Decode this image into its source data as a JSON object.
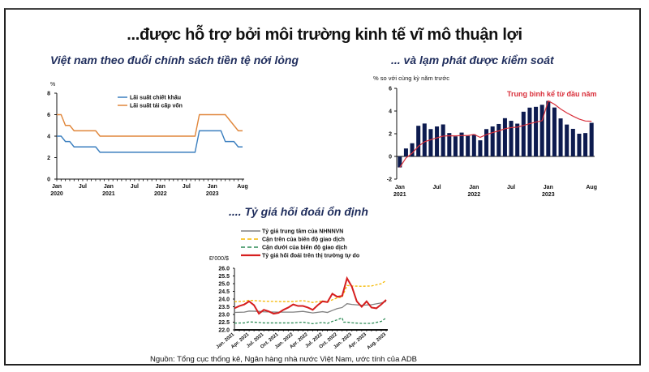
{
  "page": {
    "title": "...được hỗ trợ bởi môi trường kinh tế vĩ mô thuận lợi",
    "source": "Nguồn: Tổng cục thống kê, Ngân hàng nhà nước Việt Nam, ước tính của ADB"
  },
  "colors": {
    "title_navy": "#1f2d5c",
    "discount_rate": "#3b7fbf",
    "refinancing_rate": "#e0863a",
    "cpi_bars": "#0d1b4f",
    "cpi_avg_line": "#d9303b",
    "central_rate": "#808080",
    "upper_band": "#f5b800",
    "lower_band": "#2e8b57",
    "free_market": "#d61f1f"
  },
  "chart_data": [
    {
      "type": "line",
      "title": "Việt nam theo đuổi chính sách tiền tệ nới lỏng",
      "ylabel": "%",
      "xlabel": "",
      "ylim": [
        0,
        8
      ],
      "yticks": [
        0,
        2,
        4,
        6,
        8
      ],
      "xtick_labels": [
        {
          "month_index": 0,
          "top": "Jan",
          "bottom": "2020"
        },
        {
          "month_index": 6,
          "top": "Jul",
          "bottom": ""
        },
        {
          "month_index": 12,
          "top": "Jan",
          "bottom": "2021"
        },
        {
          "month_index": 18,
          "top": "Jul",
          "bottom": ""
        },
        {
          "month_index": 24,
          "top": "Jan",
          "bottom": "2022"
        },
        {
          "month_index": 30,
          "top": "Jul",
          "bottom": ""
        },
        {
          "month_index": 36,
          "top": "Jan",
          "bottom": "2023"
        },
        {
          "month_index": 43,
          "top": "Aug",
          "bottom": ""
        }
      ],
      "x_start": "Jan 2020",
      "x_end": "Aug 2023",
      "legend_position": "top-center",
      "grid": false,
      "series": [
        {
          "name": "Lãi suất chiết khấu",
          "values": [
            4.0,
            4.0,
            3.5,
            3.5,
            3.0,
            3.0,
            3.0,
            3.0,
            3.0,
            3.0,
            2.5,
            2.5,
            2.5,
            2.5,
            2.5,
            2.5,
            2.5,
            2.5,
            2.5,
            2.5,
            2.5,
            2.5,
            2.5,
            2.5,
            2.5,
            2.5,
            2.5,
            2.5,
            2.5,
            2.5,
            2.5,
            2.5,
            2.5,
            4.5,
            4.5,
            4.5,
            4.5,
            4.5,
            4.5,
            3.5,
            3.5,
            3.5,
            3.0,
            3.0
          ]
        },
        {
          "name": "Lãi suất tái cấp vốn",
          "values": [
            6.0,
            6.0,
            5.0,
            5.0,
            4.5,
            4.5,
            4.5,
            4.5,
            4.5,
            4.5,
            4.0,
            4.0,
            4.0,
            4.0,
            4.0,
            4.0,
            4.0,
            4.0,
            4.0,
            4.0,
            4.0,
            4.0,
            4.0,
            4.0,
            4.0,
            4.0,
            4.0,
            4.0,
            4.0,
            4.0,
            4.0,
            4.0,
            4.0,
            6.0,
            6.0,
            6.0,
            6.0,
            6.0,
            6.0,
            6.0,
            5.5,
            5.0,
            4.5,
            4.5
          ]
        }
      ]
    },
    {
      "type": "bar",
      "title": "... và lạm phát được kiểm soát",
      "ylabel": "% so với cùng kỳ năm trước",
      "xlabel": "",
      "ylim": [
        -2,
        6
      ],
      "yticks": [
        -2,
        0,
        2,
        4,
        6
      ],
      "annotation": "Trung bình kể từ đầu năm",
      "xtick_labels": [
        {
          "index": 0,
          "top": "Jan",
          "bottom": "2021"
        },
        {
          "index": 6,
          "top": "Jul",
          "bottom": ""
        },
        {
          "index": 12,
          "top": "Jan",
          "bottom": "2022"
        },
        {
          "index": 18,
          "top": "Jul",
          "bottom": ""
        },
        {
          "index": 24,
          "top": "Jan",
          "bottom": "2023"
        },
        {
          "index": 31,
          "top": "Aug",
          "bottom": ""
        }
      ],
      "categories": [
        "Jan 2021",
        "Feb 2021",
        "Mar 2021",
        "Apr 2021",
        "May 2021",
        "Jun 2021",
        "Jul 2021",
        "Aug 2021",
        "Sep 2021",
        "Oct 2021",
        "Nov 2021",
        "Dec 2021",
        "Jan 2022",
        "Feb 2022",
        "Mar 2022",
        "Apr 2022",
        "May 2022",
        "Jun 2022",
        "Jul 2022",
        "Aug 2022",
        "Sep 2022",
        "Oct 2022",
        "Nov 2022",
        "Dec 2022",
        "Jan 2023",
        "Feb 2023",
        "Mar 2023",
        "Apr 2023",
        "May 2023",
        "Jun 2023",
        "Jul 2023",
        "Aug 2023"
      ],
      "grid": false,
      "series": [
        {
          "name": "Lạm phát (% so với cùng kỳ)",
          "type": "bar",
          "values": [
            -0.97,
            0.7,
            1.16,
            2.7,
            2.9,
            2.41,
            2.64,
            2.82,
            2.06,
            1.77,
            2.1,
            1.81,
            1.94,
            1.42,
            2.41,
            2.64,
            2.86,
            3.37,
            3.14,
            2.89,
            3.94,
            4.3,
            4.37,
            4.55,
            4.89,
            4.31,
            3.35,
            2.81,
            2.43,
            2.0,
            2.06,
            2.96
          ]
        },
        {
          "name": "Trung bình kể từ đầu năm",
          "type": "line",
          "values": [
            -0.97,
            -0.14,
            0.29,
            0.89,
            1.29,
            1.47,
            1.64,
            1.79,
            1.82,
            1.81,
            1.84,
            1.84,
            1.94,
            1.68,
            1.92,
            2.1,
            2.25,
            2.44,
            2.54,
            2.58,
            2.73,
            2.89,
            3.02,
            3.15,
            4.89,
            4.6,
            4.18,
            3.84,
            3.55,
            3.29,
            3.12,
            3.1
          ]
        }
      ]
    },
    {
      "type": "line",
      "title": ".... Tỷ giá hối đoái ổn định",
      "ylabel": "Đ'000/$",
      "xlabel": "",
      "ylim": [
        22.0,
        26.0
      ],
      "yticks": [
        22.0,
        22.5,
        23.0,
        23.5,
        24.0,
        24.5,
        25.0,
        25.5,
        26.0
      ],
      "categories": [
        "Jan. 2021",
        "Apr. 2021",
        "Jul. 2021",
        "Oct. 2021",
        "Jan. 2022",
        "Apr. 2022",
        "Jul. 2022",
        "Oct. 2022",
        "Jan. 2023",
        "Apr. 2023",
        "Aug. 2023"
      ],
      "legend_position": "top",
      "grid": false,
      "series": [
        {
          "name": "Tỷ giá trung tâm của NHNNVN",
          "style": "solid",
          "x": [
            0,
            2,
            3,
            5,
            6,
            9,
            12,
            14,
            16,
            18,
            19,
            20,
            21,
            22,
            23,
            24,
            26,
            28,
            30,
            31
          ],
          "values": [
            23.13,
            23.15,
            23.22,
            23.2,
            23.17,
            23.15,
            23.15,
            23.2,
            23.1,
            23.18,
            23.13,
            23.26,
            23.38,
            23.45,
            23.7,
            23.65,
            23.6,
            23.63,
            23.75,
            23.85
          ]
        },
        {
          "name": "Cận trên của biên độ giao dịch",
          "style": "dashed",
          "x": [
            0,
            2,
            3,
            5,
            6,
            9,
            12,
            14,
            16,
            18,
            19,
            20,
            21,
            22,
            23,
            24,
            26,
            28,
            30,
            31
          ],
          "values": [
            23.83,
            23.86,
            23.92,
            23.88,
            23.86,
            23.84,
            23.84,
            23.9,
            23.78,
            23.88,
            23.82,
            23.95,
            24.08,
            24.12,
            24.88,
            24.85,
            24.83,
            24.85,
            25.0,
            25.2
          ]
        },
        {
          "name": "Cận dưới của biên độ giao dịch",
          "style": "dashed",
          "x": [
            0,
            2,
            3,
            5,
            6,
            9,
            12,
            14,
            16,
            18,
            19,
            20,
            21,
            22,
            22.3,
            23,
            24,
            26,
            28,
            30,
            31
          ],
          "values": [
            22.44,
            22.45,
            22.52,
            22.48,
            22.45,
            22.45,
            22.45,
            22.5,
            22.4,
            22.48,
            22.42,
            22.55,
            22.65,
            22.78,
            22.5,
            22.5,
            22.46,
            22.42,
            22.42,
            22.55,
            22.78
          ]
        },
        {
          "name": "Tỷ giá hối đoái trên thị trường tự do",
          "style": "solid-thick",
          "x": [
            0,
            1,
            2,
            3,
            4,
            5,
            6,
            7,
            8,
            9,
            10,
            11,
            12,
            13,
            14,
            15,
            16,
            17,
            18,
            19,
            20,
            21,
            22,
            23,
            24,
            25,
            26,
            27,
            28,
            29,
            30,
            31
          ],
          "values": [
            23.4,
            23.55,
            23.65,
            23.85,
            23.6,
            23.05,
            23.3,
            23.2,
            23.05,
            23.1,
            23.3,
            23.45,
            23.65,
            23.55,
            23.55,
            23.45,
            23.3,
            23.6,
            23.85,
            23.8,
            24.35,
            24.15,
            24.2,
            25.35,
            24.8,
            23.85,
            23.5,
            23.85,
            23.45,
            23.4,
            23.65,
            23.95
          ]
        }
      ]
    }
  ],
  "chart1": {
    "title": "Việt nam theo đuổi chính sách tiền tệ nới lỏng",
    "ylabel": "%",
    "legend": [
      "Lãi suất chiết khấu",
      "Lãi suất tái cấp vốn"
    ]
  },
  "chart2": {
    "title": "... và lạm phát được kiểm soát",
    "ylabel": "% so với cùng kỳ năm trước",
    "annotation": "Trung bình kể từ đầu năm"
  },
  "chart3": {
    "title": ".... Tỷ giá hối đoái ổn định",
    "ylabel": "Đ'000/$",
    "legend": [
      "Tỷ giá trung tâm của NHNNVN",
      "Cận trên của biên độ giao dịch",
      "Cận dưới của biên độ giao dịch",
      "Tỷ giá hối đoái trên thị trường tự do"
    ]
  }
}
